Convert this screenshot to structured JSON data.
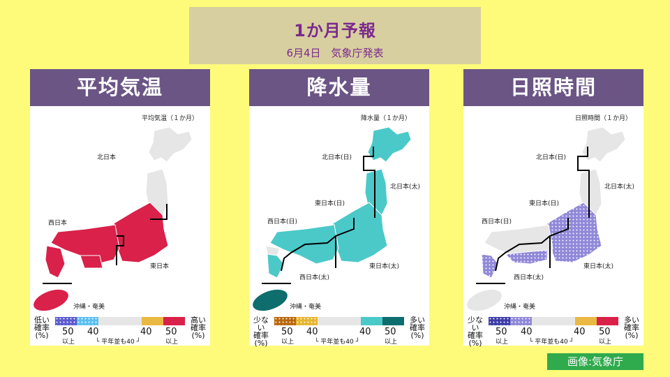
{
  "header": {
    "title": "1か月予報",
    "subtitle": "6月4日　気象庁発表"
  },
  "credit": "画像:気象庁",
  "colors": {
    "temp_high": "#d9214a",
    "temp_low_pattern": "#3a3ab0",
    "precip_high": "#4bc9c9",
    "okinawa_precip": "#0e6d6d",
    "sun_low": "#8f87d8",
    "neutral": "#e6e6e6"
  },
  "panels": [
    {
      "title": "平均気温",
      "map_caption": "平均気温（１か月）",
      "regions": [
        "北日本",
        "東日本",
        "西日本",
        "沖縄・奄美"
      ],
      "legend": {
        "left_label": [
          "低い",
          "確率",
          "(%)"
        ],
        "right_label": [
          "高い",
          "確率",
          "(%)"
        ],
        "ticks": [
          "50",
          "40",
          "40",
          "50"
        ],
        "below_ticks": [
          "以上",
          "以上"
        ],
        "normal_note": "└ 平年並も40 ┘"
      }
    },
    {
      "title": "降水量",
      "map_caption": "降水量（１か月）",
      "regions": [
        "北日本(日)",
        "北日本(太)",
        "東日本(日)",
        "東日本(太)",
        "西日本(日)",
        "西日本(太)",
        "沖縄・奄美"
      ],
      "legend": {
        "left_label": [
          "少ない",
          "確率",
          "(%)"
        ],
        "right_label": [
          "多い",
          "確率",
          "(%)"
        ],
        "ticks": [
          "50",
          "40",
          "40",
          "50"
        ],
        "below_ticks": [
          "以上",
          "以上"
        ],
        "normal_note": "└ 平年並も40 ┘"
      }
    },
    {
      "title": "日照時間",
      "map_caption": "日照時間（１か月）",
      "regions": [
        "北日本(日)",
        "北日本(太)",
        "東日本(日)",
        "東日本(太)",
        "西日本(日)",
        "西日本(太)",
        "沖縄・奄美"
      ],
      "legend": {
        "left_label": [
          "少ない",
          "確率",
          "(%)"
        ],
        "right_label": [
          "多い",
          "確率",
          "(%)"
        ],
        "ticks": [
          "50",
          "40",
          "40",
          "50"
        ],
        "below_ticks": [
          "以上",
          "以上"
        ],
        "normal_note": "└ 平年並も40 ┘"
      }
    }
  ]
}
